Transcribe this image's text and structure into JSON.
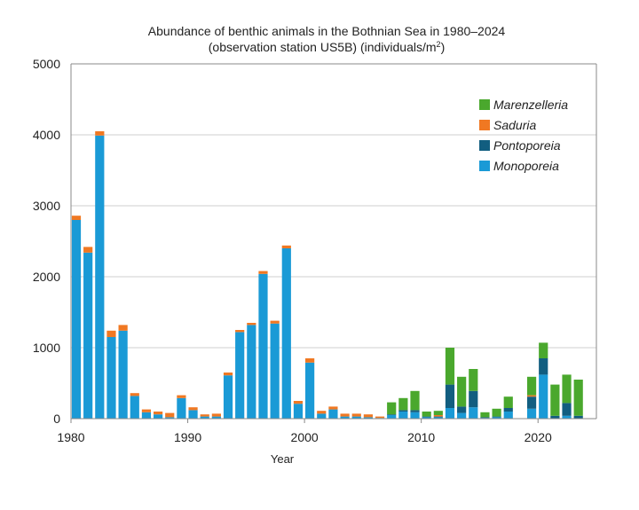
{
  "chart_data": {
    "type": "bar",
    "stacked": true,
    "title": "Abundance of benthic animals in the Bothnian Sea in 1980–2024",
    "subtitle_prefix": "(observation station US5B) (individuals/m",
    "subtitle_sup": "2",
    "subtitle_suffix": ")",
    "xlabel": "Year",
    "ylabel": "",
    "xlim": [
      1980,
      2024
    ],
    "ylim": [
      0,
      5000
    ],
    "x_ticks": [
      "1980",
      "1990",
      "2000",
      "2010",
      "2020"
    ],
    "y_ticks": [
      "0",
      "1000",
      "2000",
      "3000",
      "4000",
      "5000"
    ],
    "grid": "horizontal",
    "legend_position": "top-right",
    "years": [
      1980,
      1981,
      1982,
      1983,
      1984,
      1985,
      1986,
      1987,
      1988,
      1989,
      1990,
      1991,
      1992,
      1993,
      1994,
      1995,
      1996,
      1997,
      1998,
      1999,
      2000,
      2001,
      2002,
      2003,
      2004,
      2005,
      2006,
      2007,
      2008,
      2009,
      2010,
      2011,
      2012,
      2013,
      2014,
      2015,
      2016,
      2017,
      2018,
      2019,
      2020,
      2021,
      2022,
      2023
    ],
    "series": [
      {
        "name": "Monoporeia",
        "color": "#1a9ad6",
        "values": [
          2800,
          2340,
          3990,
          1150,
          1240,
          320,
          90,
          60,
          20,
          290,
          120,
          30,
          30,
          610,
          1220,
          1320,
          2040,
          1340,
          2400,
          210,
          790,
          70,
          130,
          30,
          30,
          20,
          10,
          50,
          100,
          90,
          20,
          20,
          150,
          80,
          160,
          10,
          20,
          100,
          0,
          140,
          620,
          0,
          40,
          0
        ]
      },
      {
        "name": "Pontoporeia",
        "color": "#125e80",
        "values": [
          0,
          0,
          0,
          0,
          0,
          0,
          0,
          0,
          0,
          0,
          0,
          0,
          0,
          0,
          0,
          0,
          0,
          0,
          0,
          0,
          0,
          0,
          0,
          0,
          0,
          0,
          0,
          10,
          20,
          30,
          10,
          10,
          330,
          90,
          230,
          10,
          10,
          50,
          0,
          170,
          230,
          40,
          180,
          40
        ]
      },
      {
        "name": "Saduria",
        "color": "#f07822",
        "values": [
          60,
          80,
          60,
          90,
          80,
          40,
          40,
          40,
          60,
          40,
          40,
          30,
          40,
          40,
          30,
          30,
          40,
          40,
          40,
          40,
          60,
          40,
          40,
          40,
          40,
          40,
          20,
          0,
          0,
          0,
          0,
          20,
          0,
          0,
          0,
          0,
          0,
          0,
          0,
          20,
          0,
          0,
          0,
          0
        ]
      },
      {
        "name": "Marenzelleria",
        "color": "#4aa82d",
        "values": [
          0,
          0,
          0,
          0,
          0,
          0,
          0,
          0,
          0,
          0,
          0,
          0,
          0,
          0,
          0,
          0,
          0,
          0,
          0,
          0,
          0,
          0,
          0,
          0,
          0,
          0,
          0,
          170,
          170,
          270,
          70,
          60,
          520,
          420,
          310,
          70,
          110,
          160,
          0,
          260,
          220,
          440,
          400,
          510
        ]
      }
    ],
    "legend_order": [
      "Marenzelleria",
      "Saduria",
      "Pontoporeia",
      "Monoporeia"
    ]
  }
}
